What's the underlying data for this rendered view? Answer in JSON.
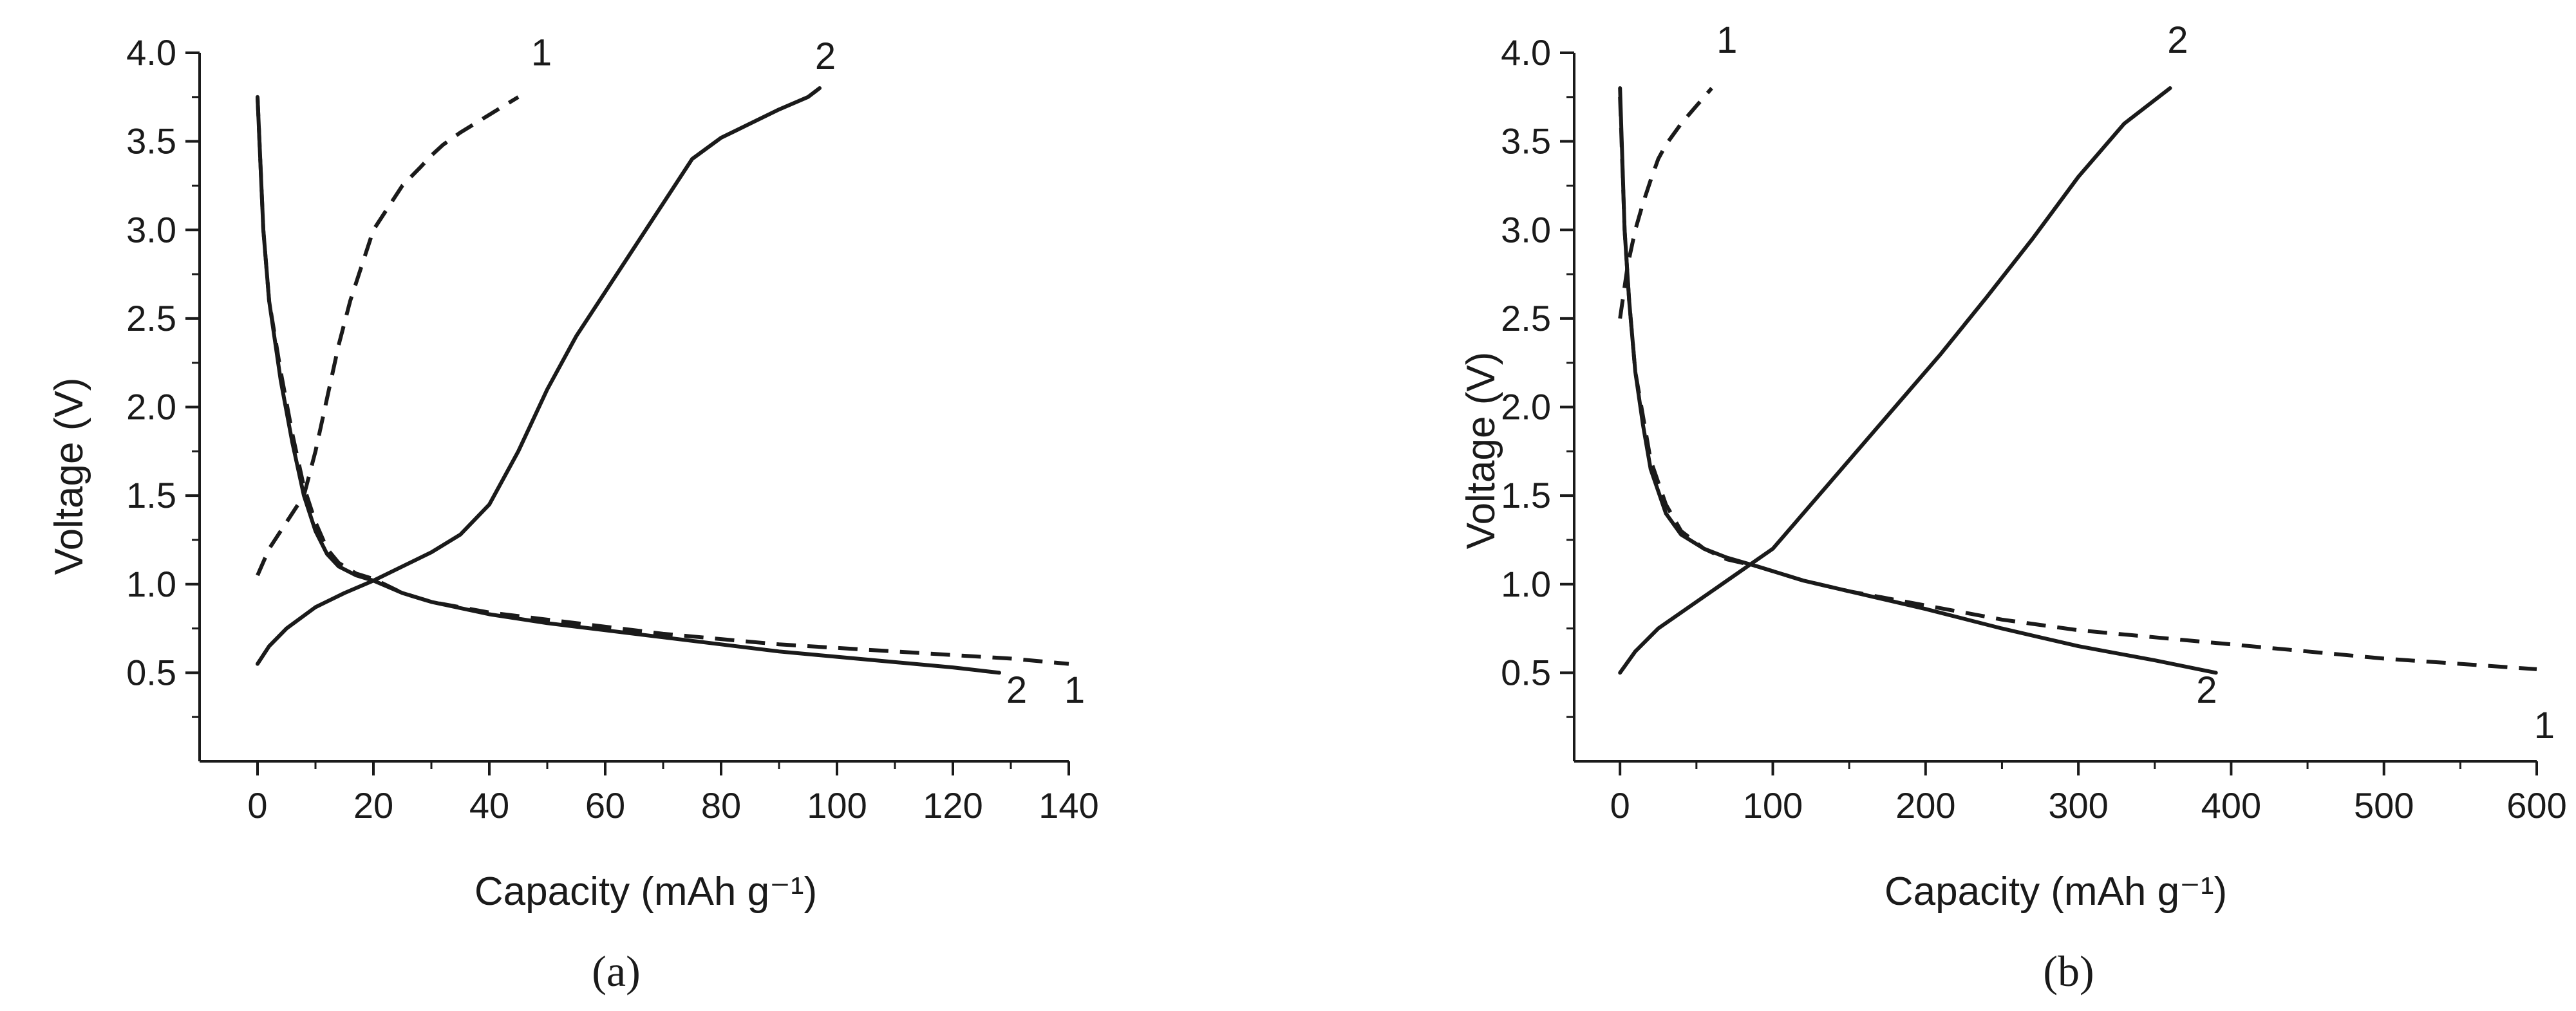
{
  "chart_data": [
    {
      "type": "line",
      "panel_label": "(a)",
      "xlabel": "Capacity (mAh g⁻¹)",
      "ylabel": "Voltage (V)",
      "xlim": [
        -10,
        140
      ],
      "ylim": [
        0,
        4.0
      ],
      "xticks": [
        0,
        20,
        40,
        60,
        80,
        100,
        120,
        140
      ],
      "yticks": [
        0.5,
        1.0,
        1.5,
        2.0,
        2.5,
        3.0,
        3.5,
        4.0
      ],
      "xtick_labels": [
        "0",
        "20",
        "40",
        "60",
        "80",
        "100",
        "120",
        "140"
      ],
      "ytick_labels": [
        "0.5",
        "1.0",
        "1.5",
        "2.0",
        "2.5",
        "3.0",
        "3.5",
        "4.0"
      ],
      "grid": false,
      "series": [
        {
          "name": "1",
          "style": "dashed",
          "color": "#1a1a1a",
          "segments": [
            {
              "x": [
                0,
                1,
                2,
                4,
                6,
                8,
                10,
                12,
                14,
                17,
                20,
                25,
                30,
                40,
                50,
                60,
                70,
                80,
                90,
                100,
                110,
                120,
                130,
                140
              ],
              "y": [
                3.75,
                3.0,
                2.6,
                2.2,
                1.85,
                1.55,
                1.35,
                1.2,
                1.12,
                1.06,
                1.03,
                0.95,
                0.9,
                0.84,
                0.8,
                0.76,
                0.72,
                0.69,
                0.66,
                0.64,
                0.62,
                0.6,
                0.58,
                0.55
              ]
            },
            {
              "x": [
                0,
                2,
                5,
                8,
                10,
                12,
                14,
                16,
                18,
                20,
                22,
                25,
                28,
                30,
                32,
                35,
                40,
                45
              ],
              "y": [
                1.05,
                1.2,
                1.35,
                1.5,
                1.75,
                2.05,
                2.35,
                2.6,
                2.8,
                3.0,
                3.1,
                3.25,
                3.35,
                3.42,
                3.48,
                3.55,
                3.65,
                3.75
              ]
            }
          ]
        },
        {
          "name": "2",
          "style": "solid",
          "color": "#1a1a1a",
          "segments": [
            {
              "x": [
                0,
                1,
                2,
                4,
                6,
                8,
                10,
                12,
                14,
                17,
                20,
                25,
                30,
                40,
                50,
                60,
                70,
                80,
                90,
                100,
                110,
                120,
                128
              ],
              "y": [
                3.75,
                3.0,
                2.6,
                2.15,
                1.8,
                1.5,
                1.3,
                1.17,
                1.1,
                1.05,
                1.02,
                0.95,
                0.9,
                0.83,
                0.78,
                0.74,
                0.7,
                0.66,
                0.62,
                0.59,
                0.56,
                0.53,
                0.5
              ]
            },
            {
              "x": [
                0,
                2,
                5,
                10,
                15,
                20,
                25,
                30,
                35,
                40,
                45,
                50,
                55,
                60,
                65,
                70,
                75,
                80,
                85,
                90,
                95,
                97
              ],
              "y": [
                0.55,
                0.65,
                0.75,
                0.87,
                0.95,
                1.02,
                1.1,
                1.18,
                1.28,
                1.45,
                1.75,
                2.1,
                2.4,
                2.65,
                2.9,
                3.15,
                3.4,
                3.52,
                3.6,
                3.68,
                3.75,
                3.8
              ]
            }
          ]
        }
      ],
      "annotations": [
        {
          "text": "1",
          "x": 49,
          "y": 3.93
        },
        {
          "text": "2",
          "x": 98,
          "y": 3.91
        },
        {
          "text": "2",
          "x": 131,
          "y": 0.33
        },
        {
          "text": "1",
          "x": 141,
          "y": 0.33
        }
      ]
    },
    {
      "type": "line",
      "panel_label": "(b)",
      "xlabel": "Capacity (mAh g⁻¹)",
      "ylabel": "Voltage  (V)",
      "xlim": [
        -30,
        600
      ],
      "ylim": [
        0,
        4.0
      ],
      "xticks": [
        0,
        100,
        200,
        300,
        400,
        500,
        600
      ],
      "yticks": [
        0.5,
        1.0,
        1.5,
        2.0,
        2.5,
        3.0,
        3.5,
        4.0
      ],
      "xtick_labels": [
        "0",
        "100",
        "200",
        "300",
        "400",
        "500",
        "600"
      ],
      "ytick_labels": [
        "0.5",
        "1.0",
        "1.5",
        "2.0",
        "2.5",
        "3.0",
        "3.5",
        "4.0"
      ],
      "grid": false,
      "series": [
        {
          "name": "1",
          "style": "dashed",
          "color": "#1a1a1a",
          "segments": [
            {
              "x": [
                0,
                3,
                6,
                10,
                15,
                20,
                30,
                40,
                55,
                70,
                90,
                120,
                150,
                200,
                250,
                300,
                350,
                400,
                450,
                500,
                550,
                600
              ],
              "y": [
                3.75,
                3.0,
                2.6,
                2.2,
                1.95,
                1.7,
                1.45,
                1.3,
                1.2,
                1.14,
                1.1,
                1.02,
                0.96,
                0.88,
                0.8,
                0.74,
                0.7,
                0.66,
                0.62,
                0.58,
                0.55,
                0.52
              ]
            },
            {
              "x": [
                0,
                5,
                10,
                15,
                20,
                25,
                30,
                40,
                50,
                60
              ],
              "y": [
                2.5,
                2.8,
                3.0,
                3.15,
                3.28,
                3.4,
                3.48,
                3.6,
                3.7,
                3.8
              ]
            }
          ]
        },
        {
          "name": "2",
          "style": "solid",
          "color": "#1a1a1a",
          "segments": [
            {
              "x": [
                0,
                3,
                6,
                10,
                15,
                20,
                30,
                40,
                55,
                70,
                90,
                120,
                150,
                200,
                250,
                300,
                350,
                390
              ],
              "y": [
                3.8,
                3.0,
                2.6,
                2.2,
                1.9,
                1.65,
                1.4,
                1.28,
                1.2,
                1.15,
                1.1,
                1.02,
                0.96,
                0.86,
                0.75,
                0.65,
                0.57,
                0.5
              ]
            },
            {
              "x": [
                0,
                10,
                25,
                50,
                75,
                100,
                115,
                130,
                150,
                180,
                210,
                240,
                270,
                300,
                330,
                360
              ],
              "y": [
                0.5,
                0.62,
                0.75,
                0.9,
                1.05,
                1.2,
                1.35,
                1.5,
                1.7,
                2.0,
                2.3,
                2.62,
                2.95,
                3.3,
                3.6,
                3.8
              ]
            }
          ]
        }
      ],
      "annotations": [
        {
          "text": "1",
          "x": 70,
          "y": 4.0
        },
        {
          "text": "2",
          "x": 365,
          "y": 4.0
        },
        {
          "text": "2",
          "x": 384,
          "y": 0.33
        },
        {
          "text": "1",
          "x": 605,
          "y": 0.13
        }
      ]
    }
  ]
}
